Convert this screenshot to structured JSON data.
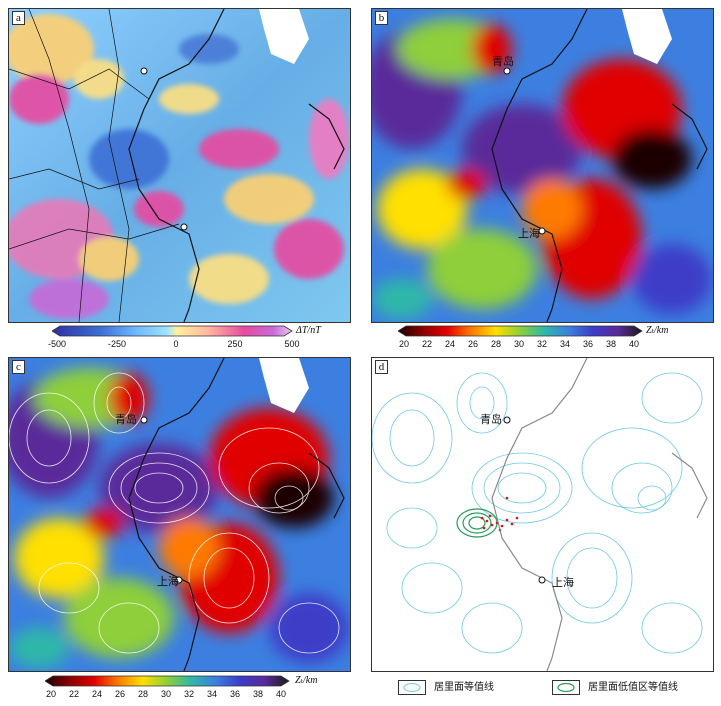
{
  "panels": {
    "a": {
      "label": "a",
      "cities": [],
      "colorbar": {
        "ticks": [
          "-500",
          "-250",
          "0",
          "250",
          "500"
        ],
        "unit": "ΔT/nT",
        "colors": [
          "#2f2f9f",
          "#3c6fd6",
          "#6fb8ff",
          "#9fe3ff",
          "#fff09f",
          "#ffb8a0",
          "#e84aa0",
          "#c86ad8",
          "#e6c8f0"
        ]
      }
    },
    "b": {
      "label": "b",
      "cities": [
        "青岛",
        "上海"
      ],
      "colorbar": {
        "ticks": [
          "20",
          "22",
          "24",
          "26",
          "28",
          "30",
          "32",
          "34",
          "36",
          "38",
          "40"
        ],
        "unit": "Zₜ/km",
        "colors": [
          "#1a0000",
          "#8c0000",
          "#e00000",
          "#ff7a00",
          "#ffe000",
          "#8ecf3a",
          "#2fb8a8",
          "#3c7fe0",
          "#3c3cc8",
          "#5a2a9a",
          "#1a1a1a"
        ]
      }
    },
    "c": {
      "label": "c",
      "cities": [
        "青岛",
        "上海"
      ],
      "colorbar": {
        "ticks": [
          "20",
          "22",
          "24",
          "26",
          "28",
          "30",
          "32",
          "34",
          "36",
          "38",
          "40"
        ],
        "unit": "Zₜ/km",
        "colors": [
          "#1a0000",
          "#8c0000",
          "#e00000",
          "#ff7a00",
          "#ffe000",
          "#8ecf3a",
          "#2fb8a8",
          "#3c7fe0",
          "#3c3cc8",
          "#5a2a9a",
          "#1a1a1a"
        ]
      }
    },
    "d": {
      "label": "d",
      "cities": [
        "青岛",
        "上海"
      ],
      "legend": {
        "item1": "居里面等值线",
        "item2": "居里面低值区等值线"
      },
      "colors": {
        "contour": "#6fc8e8",
        "low_contour": "#2a9a5a",
        "points": "#e01010",
        "land": "#8a8a8a"
      }
    }
  }
}
